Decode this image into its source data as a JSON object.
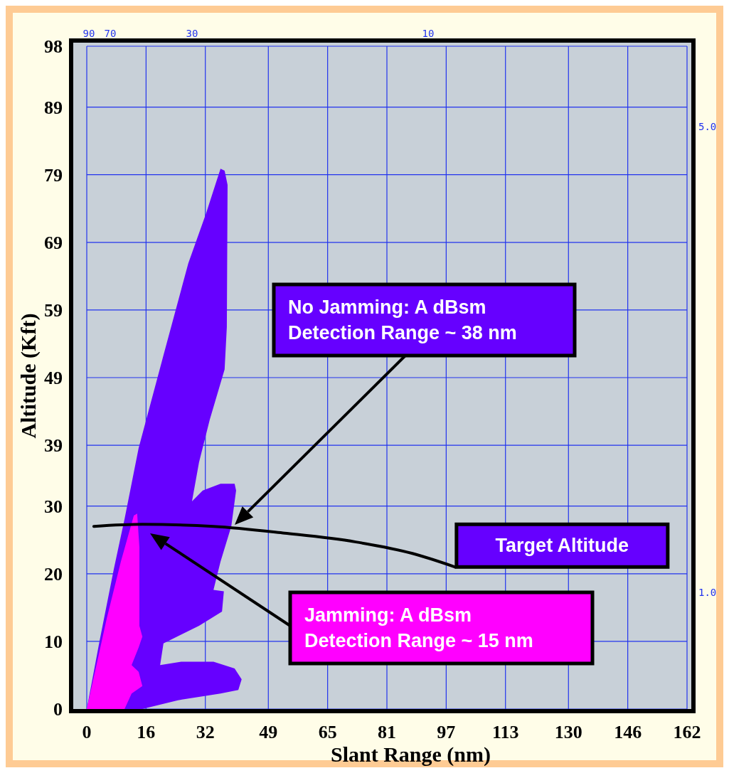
{
  "chart_data": {
    "type": "area",
    "xlabel": "Slant Range (nm)",
    "ylabel": "Altitude (Kft)",
    "xlim": [
      0,
      162
    ],
    "xticks": [
      0,
      16,
      32,
      49,
      65,
      81,
      97,
      113,
      130,
      146,
      162
    ],
    "ylim": [
      0,
      98
    ],
    "yticks": [
      0,
      10,
      20,
      30,
      39,
      49,
      59,
      69,
      79,
      89,
      98
    ],
    "grid": true,
    "series": [
      {
        "color": "#6600ff",
        "x": [
          0,
          3.5,
          7.3,
          10.2,
          14.0,
          20.7,
          27.4,
          32.2,
          36.1,
          37.2,
          38.0,
          37.8,
          37.2,
          33.2,
          30.3,
          28.4,
          31.3,
          36.1,
          39.9,
          40.3,
          39.0,
          36.1,
          34.2,
          37.0,
          36.5,
          30.3,
          20.7,
          19.8,
          25.5,
          34.2,
          39.9,
          41.8,
          40.9,
          36.1,
          24.6,
          15.0
        ],
        "values": [
          0,
          10.2,
          20.7,
          28.1,
          38.6,
          52.3,
          65.9,
          73.3,
          79.9,
          79.6,
          77.5,
          56.5,
          50.2,
          42.8,
          36.5,
          30.7,
          32.3,
          33.3,
          33.3,
          32.3,
          27.0,
          21.8,
          17.6,
          17.4,
          14.4,
          12.3,
          9.7,
          6.5,
          7.0,
          7.0,
          6.0,
          4.4,
          2.8,
          2.3,
          1.3,
          0
        ]
      },
      {
        "color": "#ff00ff",
        "x": [
          0,
          5.4,
          9.2,
          12.7,
          13.6,
          14.2,
          14.2,
          15.0,
          14.0,
          12.1,
          14.0,
          15.0,
          12.1,
          10.2
        ],
        "values": [
          0,
          13.4,
          21.8,
          28.6,
          28.9,
          23.9,
          12.3,
          10.7,
          9.1,
          6.5,
          5.5,
          3.4,
          2.3,
          0
        ]
      },
      {
        "type": "line",
        "color": "#000000",
        "x": [
          1.9,
          15.0,
          34.2,
          53.4,
          72.6,
          87.9,
          99.4
        ],
        "values": [
          27.0,
          27.3,
          27.0,
          26.0,
          24.7,
          23.0,
          21.0
        ]
      }
    ],
    "annotations": [
      "No Jamming: A dBsm\nDetection Range ~ 38 nm",
      "Jamming: A dBsm\nDetection Range ~ 15 nm",
      {
        "text": "Target Altitude",
        "x": 99.4,
        "y": 21
      },
      "90",
      "70",
      "30",
      "10",
      "5.0",
      "1.0"
    ]
  }
}
